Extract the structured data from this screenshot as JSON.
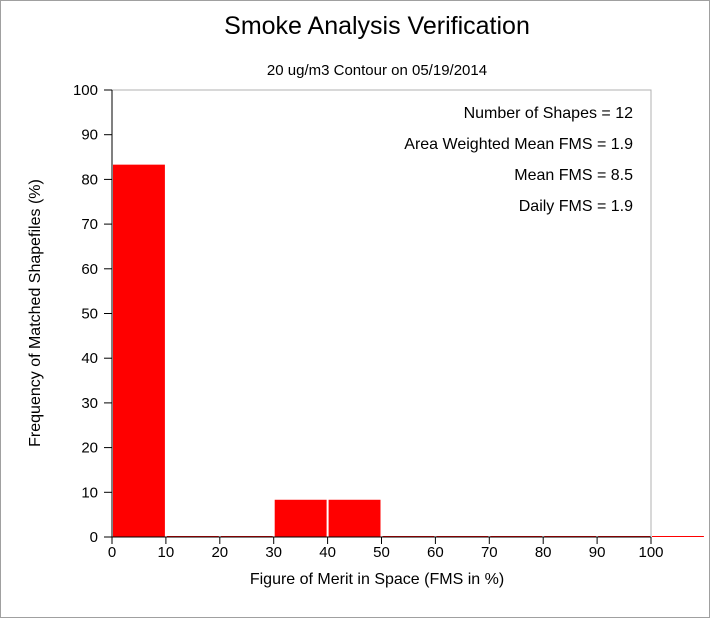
{
  "chart_data": {
    "type": "bar",
    "title": "Smoke Analysis Verification",
    "subtitle": "20 ug/m3 Contour on 05/19/2014",
    "xlabel": "Figure of Merit in Space (FMS in %)",
    "ylabel": "Frequency of Matched Shapefiles (%)",
    "xlim": [
      0,
      100
    ],
    "ylim": [
      0,
      100
    ],
    "x_ticks": [
      0,
      10,
      20,
      30,
      40,
      50,
      60,
      70,
      80,
      90,
      100
    ],
    "y_ticks": [
      0,
      10,
      20,
      30,
      40,
      50,
      60,
      70,
      80,
      90,
      100
    ],
    "bin_width": 10,
    "bins": [
      {
        "start": 0,
        "end": 10,
        "value": 83.3
      },
      {
        "start": 10,
        "end": 20,
        "value": 0
      },
      {
        "start": 20,
        "end": 30,
        "value": 0
      },
      {
        "start": 30,
        "end": 40,
        "value": 8.33
      },
      {
        "start": 40,
        "end": 50,
        "value": 8.33
      },
      {
        "start": 50,
        "end": 60,
        "value": 0
      },
      {
        "start": 60,
        "end": 70,
        "value": 0
      },
      {
        "start": 70,
        "end": 80,
        "value": 0
      },
      {
        "start": 80,
        "end": 90,
        "value": 0
      },
      {
        "start": 90,
        "end": 100,
        "value": 0
      },
      {
        "start": 100,
        "end": 110,
        "value": 0
      }
    ],
    "bar_color": "#ff0000",
    "grid": false,
    "annotations": [
      "Number of Shapes = 12",
      "Area Weighted Mean FMS = 1.9",
      "Mean FMS = 8.5",
      "Daily FMS = 1.9"
    ]
  }
}
